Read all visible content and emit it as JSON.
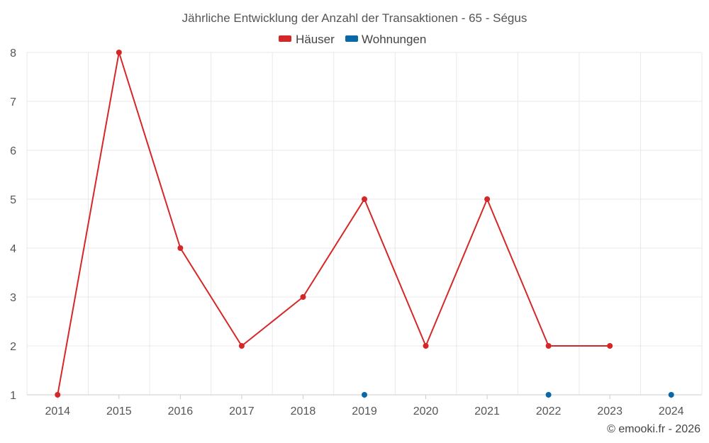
{
  "chart_data": {
    "type": "line",
    "title": "Jährliche Entwicklung der Anzahl der Transaktionen - 65 - Ségus",
    "categories": [
      "2014",
      "2015",
      "2016",
      "2017",
      "2018",
      "2019",
      "2020",
      "2021",
      "2022",
      "2023",
      "2024"
    ],
    "ylim": [
      1,
      8
    ],
    "yticks": [
      1,
      2,
      3,
      4,
      5,
      6,
      7,
      8
    ],
    "grid": true,
    "legend_position": "top-center",
    "series": [
      {
        "name": "Häuser",
        "color": "#d62728",
        "values": [
          1,
          8,
          4,
          2,
          3,
          5,
          2,
          5,
          2,
          2,
          null
        ]
      },
      {
        "name": "Wohnungen",
        "color": "#0868a8",
        "values": [
          null,
          null,
          null,
          null,
          null,
          1,
          null,
          null,
          1,
          null,
          1
        ]
      }
    ]
  },
  "credit": "© emooki.fr - 2026"
}
